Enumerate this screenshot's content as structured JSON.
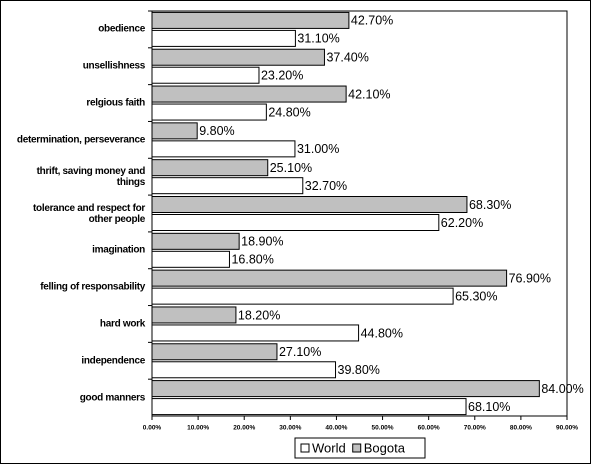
{
  "chart_data": {
    "type": "bar",
    "orientation": "horizontal",
    "categories": [
      "obedience",
      "unsellishness",
      "relgious faith",
      "determination, perseverance",
      "thrift, saving money and things",
      "tolerance and respect for other people",
      "imagination",
      "felling of responsability",
      "hard work",
      "independence",
      "good manners"
    ],
    "series": [
      {
        "name": "World",
        "color": "#ffffff",
        "values": [
          31.1,
          23.2,
          24.8,
          31.0,
          32.7,
          62.2,
          16.8,
          65.3,
          44.8,
          39.8,
          68.1
        ],
        "value_labels": [
          "31.10%",
          "23.20%",
          "24.80%",
          "31.00%",
          "32.70%",
          "62.20%",
          "16.80%",
          "65.30%",
          "44.80%",
          "39.80%",
          "68.10%"
        ]
      },
      {
        "name": "Bogota",
        "color": "#c0c0c0",
        "values": [
          42.7,
          37.4,
          42.1,
          9.8,
          25.1,
          68.3,
          18.9,
          76.9,
          18.2,
          27.1,
          84.0
        ],
        "value_labels": [
          "42.70%",
          "37.40%",
          "42.10%",
          "9.80%",
          "25.10%",
          "68.30%",
          "18.90%",
          "76.90%",
          "18.20%",
          "27.10%",
          "84.00%"
        ]
      }
    ],
    "xlim": [
      0,
      90
    ],
    "xticks": [
      {
        "value": 0,
        "label": "0.00%"
      },
      {
        "value": 10,
        "label": "10.00%"
      },
      {
        "value": 20,
        "label": "20.00%"
      },
      {
        "value": 30,
        "label": "30.00%"
      },
      {
        "value": 40,
        "label": "40.00%"
      },
      {
        "value": 50,
        "label": "50.00%"
      },
      {
        "value": 60,
        "label": "60.00%"
      },
      {
        "value": 70,
        "label": "70.00%"
      },
      {
        "value": 80,
        "label": "80.00%"
      },
      {
        "value": 90,
        "label": "90.00%"
      }
    ],
    "legend": "bottom"
  }
}
